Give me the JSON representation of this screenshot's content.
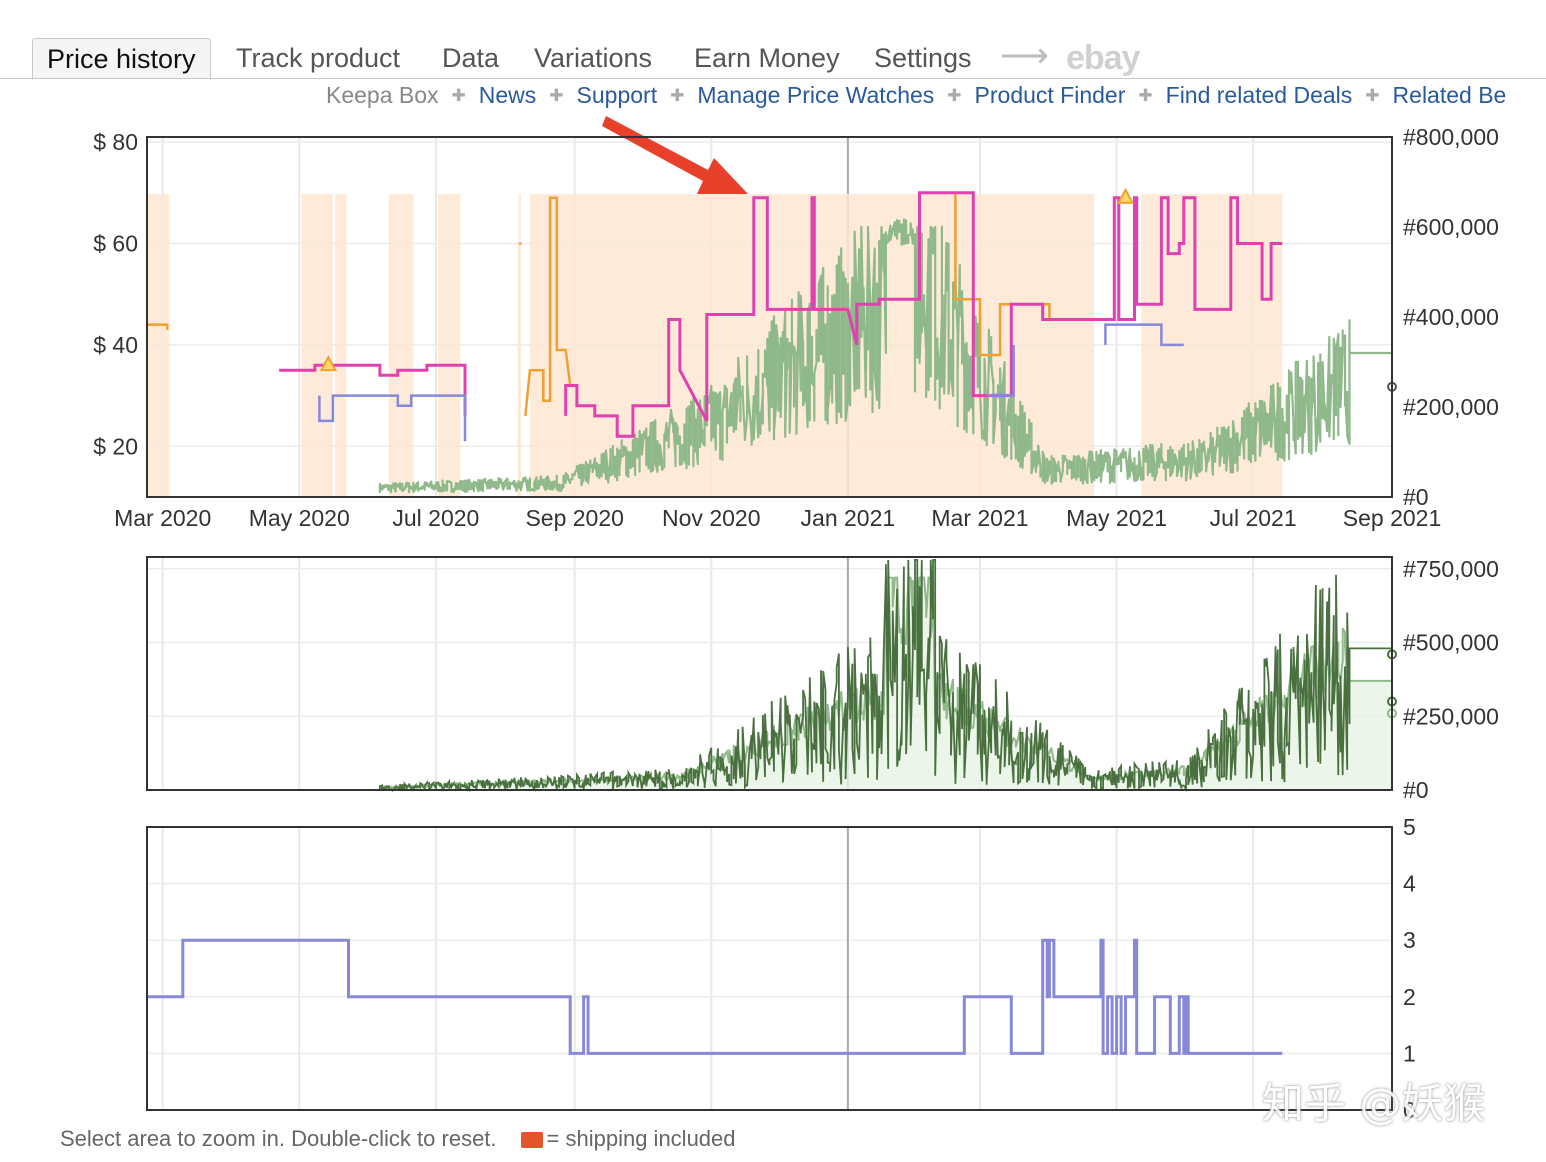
{
  "tabs": [
    {
      "label": "Price history",
      "active": true
    },
    {
      "label": "Track product",
      "active": false
    },
    {
      "label": "Data",
      "active": false
    },
    {
      "label": "Variations",
      "active": false
    },
    {
      "label": "Earn Money",
      "active": false
    },
    {
      "label": "Settings",
      "active": false
    }
  ],
  "tab_arrow": "⟶",
  "tab_ebay": "ebay",
  "sublinks": {
    "keepa_box": "Keepa Box",
    "items": [
      "News",
      "Support",
      "Manage Price Watches",
      "Product Finder",
      "Find related Deals",
      "Related Be"
    ]
  },
  "footer": {
    "hint": "Select area to zoom in. Double-click to reset.",
    "shipping": "= shipping included"
  },
  "watermark": "知乎 @妖猴",
  "colors": {
    "amazon": "#f0a030",
    "new": "#e040b0",
    "used": "#8888d8",
    "rank": "#8fb98a",
    "rank_dark": "#4a7040",
    "fill": "#fde6d2",
    "arrow": "#e8402a"
  },
  "chart_data": [
    {
      "type": "line",
      "panel": "price",
      "x_ticks": [
        "Mar 2020",
        "May 2020",
        "Jul 2020",
        "Sep 2020",
        "Nov 2020",
        "Jan 2021",
        "Mar 2021",
        "May 2021",
        "Jul 2021",
        "Sep 2021"
      ],
      "x_range": [
        "2020-02-23",
        "2021-09-01"
      ],
      "y_left_ticks": [
        "$ 20",
        "$ 40",
        "$ 60",
        "$ 80"
      ],
      "y_left_range": [
        10,
        81
      ],
      "y_right_ticks": [
        "#0",
        "#200,000",
        "#400,000",
        "#600,000",
        "#800,000"
      ],
      "y_right_range": [
        0,
        800000
      ],
      "series": [
        {
          "key": "amazon",
          "color": "#f0a030",
          "points": [
            [
              "2020-02-23",
              44
            ],
            [
              "2020-03-03",
              44
            ],
            [
              "2020-03-03",
              43
            ],
            [
              "2020-08-10",
              26
            ],
            [
              "2020-08-12",
              35
            ],
            [
              "2020-08-18",
              35
            ],
            [
              "2020-08-18",
              29
            ],
            [
              "2020-08-21",
              29
            ],
            [
              "2020-08-21",
              69
            ],
            [
              "2020-08-24",
              69
            ],
            [
              "2020-08-24",
              39
            ],
            [
              "2020-08-28",
              39
            ],
            [
              "2020-08-30",
              32
            ],
            [
              "2021-02-02",
              70
            ],
            [
              "2021-02-18",
              70
            ],
            [
              "2021-02-18",
              49
            ],
            [
              "2021-03-01",
              49
            ],
            [
              "2021-03-01",
              38
            ],
            [
              "2021-03-10",
              38
            ],
            [
              "2021-03-10",
              48
            ],
            [
              "2021-04-01",
              48
            ],
            [
              "2021-04-01",
              45
            ],
            [
              "2021-04-21",
              45
            ]
          ]
        },
        {
          "key": "new",
          "color": "#e040b0",
          "points": [
            [
              "2020-04-22",
              35
            ],
            [
              "2020-05-08",
              35
            ],
            [
              "2020-05-08",
              36
            ],
            [
              "2020-06-06",
              36
            ],
            [
              "2020-06-06",
              34
            ],
            [
              "2020-06-14",
              34
            ],
            [
              "2020-06-14",
              35
            ],
            [
              "2020-06-27",
              35
            ],
            [
              "2020-06-27",
              36
            ],
            [
              "2020-07-14",
              36
            ],
            [
              "2020-07-14",
              26
            ],
            [
              "2020-08-28",
              26
            ],
            [
              "2020-08-28",
              32
            ],
            [
              "2020-09-02",
              32
            ],
            [
              "2020-09-02",
              28
            ],
            [
              "2020-09-10",
              28
            ],
            [
              "2020-09-10",
              26
            ],
            [
              "2020-09-20",
              26
            ],
            [
              "2020-09-20",
              22
            ],
            [
              "2020-09-27",
              22
            ],
            [
              "2020-09-27",
              28
            ],
            [
              "2020-10-13",
              28
            ],
            [
              "2020-10-13",
              45
            ],
            [
              "2020-10-18",
              45
            ],
            [
              "2020-10-18",
              35
            ],
            [
              "2020-10-30",
              25
            ],
            [
              "2020-10-30",
              46
            ],
            [
              "2020-11-20",
              46
            ],
            [
              "2020-11-20",
              69
            ],
            [
              "2020-11-26",
              69
            ],
            [
              "2020-11-26",
              47
            ],
            [
              "2020-12-16",
              47
            ],
            [
              "2020-12-16",
              69
            ],
            [
              "2020-12-17",
              69
            ],
            [
              "2020-12-17",
              47
            ],
            [
              "2021-01-01",
              47
            ],
            [
              "2021-01-05",
              40
            ],
            [
              "2021-01-05",
              48
            ],
            [
              "2021-01-15",
              48
            ],
            [
              "2021-01-15",
              49
            ],
            [
              "2021-02-02",
              49
            ],
            [
              "2021-02-02",
              70
            ],
            [
              "2021-02-26",
              70
            ],
            [
              "2021-02-26",
              30
            ],
            [
              "2021-03-15",
              30
            ],
            [
              "2021-03-15",
              48
            ],
            [
              "2021-03-29",
              48
            ],
            [
              "2021-03-29",
              45
            ],
            [
              "2021-04-30",
              45
            ],
            [
              "2021-04-30",
              69
            ],
            [
              "2021-05-02",
              69
            ],
            [
              "2021-05-02",
              45
            ],
            [
              "2021-05-09",
              45
            ],
            [
              "2021-05-09",
              69
            ],
            [
              "2021-05-10",
              69
            ],
            [
              "2021-05-10",
              48
            ],
            [
              "2021-05-21",
              48
            ],
            [
              "2021-05-21",
              69
            ],
            [
              "2021-05-24",
              69
            ],
            [
              "2021-05-24",
              58
            ],
            [
              "2021-05-29",
              58
            ],
            [
              "2021-05-29",
              60
            ],
            [
              "2021-05-31",
              60
            ],
            [
              "2021-05-31",
              69
            ],
            [
              "2021-06-05",
              69
            ],
            [
              "2021-06-05",
              47
            ],
            [
              "2021-06-21",
              47
            ],
            [
              "2021-06-21",
              69
            ],
            [
              "2021-06-24",
              69
            ],
            [
              "2021-06-24",
              60
            ],
            [
              "2021-07-05",
              60
            ],
            [
              "2021-07-05",
              49
            ],
            [
              "2021-07-09",
              49
            ],
            [
              "2021-07-09",
              60
            ],
            [
              "2021-07-14",
              60
            ]
          ]
        },
        {
          "key": "used",
          "color": "#8888d8",
          "points": [
            [
              "2020-02-23",
              30
            ],
            [
              "2020-05-10",
              30
            ],
            [
              "2020-05-10",
              25
            ],
            [
              "2020-05-16",
              25
            ],
            [
              "2020-05-16",
              30
            ],
            [
              "2020-06-14",
              30
            ],
            [
              "2020-06-14",
              28
            ],
            [
              "2020-06-20",
              28
            ],
            [
              "2020-06-20",
              30
            ],
            [
              "2020-07-14",
              30
            ],
            [
              "2020-07-14",
              21
            ],
            [
              "2020-08-28",
              21
            ],
            [
              "2021-03-04",
              30
            ],
            [
              "2021-03-16",
              30
            ],
            [
              "2021-03-16",
              40
            ],
            [
              "2021-04-26",
              40
            ],
            [
              "2021-04-26",
              44
            ],
            [
              "2021-05-21",
              44
            ],
            [
              "2021-05-21",
              40
            ],
            [
              "2021-05-31",
              40
            ]
          ]
        },
        {
          "key": "sales_rank",
          "color": "#8fb98a",
          "axis": "right",
          "generated": true
        }
      ],
      "annotations": [
        "red arrow pointing at price peak Nov 2020",
        "warning triangles near May 2020 and May 2021"
      ]
    },
    {
      "type": "line",
      "panel": "rank_detail",
      "y_right_ticks": [
        "#0",
        "#250,000",
        "#500,000",
        "#750,000"
      ],
      "y_right_range": [
        0,
        790000
      ],
      "series": [
        {
          "key": "rank_light",
          "color": "#8fb98a"
        },
        {
          "key": "rank_dark",
          "color": "#4a7040"
        }
      ]
    },
    {
      "type": "line",
      "panel": "offer_count",
      "y_right_ticks": [
        "0",
        "1",
        "2",
        "3",
        "4",
        "5"
      ],
      "y_right_range": [
        0,
        5
      ],
      "series": [
        {
          "key": "used_offers",
          "color": "#8888d8",
          "points": [
            [
              "2020-02-23",
              2
            ],
            [
              "2020-03-10",
              2
            ],
            [
              "2020-03-10",
              3
            ],
            [
              "2020-05-23",
              3
            ],
            [
              "2020-05-23",
              2
            ],
            [
              "2020-08-30",
              2
            ],
            [
              "2020-08-30",
              1
            ],
            [
              "2020-09-05",
              1
            ],
            [
              "2020-09-05",
              2
            ],
            [
              "2020-09-07",
              2
            ],
            [
              "2020-09-07",
              1
            ],
            [
              "2021-02-22",
              1
            ],
            [
              "2021-02-22",
              2
            ],
            [
              "2021-03-15",
              2
            ],
            [
              "2021-03-15",
              1
            ],
            [
              "2021-03-29",
              1
            ],
            [
              "2021-03-29",
              3
            ],
            [
              "2021-03-31",
              3
            ],
            [
              "2021-03-31",
              2
            ],
            [
              "2021-04-01",
              2
            ],
            [
              "2021-04-01",
              3
            ],
            [
              "2021-04-03",
              3
            ],
            [
              "2021-04-03",
              2
            ],
            [
              "2021-04-24",
              2
            ],
            [
              "2021-04-24",
              3
            ],
            [
              "2021-04-25",
              3
            ],
            [
              "2021-04-25",
              1
            ],
            [
              "2021-04-27",
              1
            ],
            [
              "2021-04-27",
              2
            ],
            [
              "2021-04-29",
              2
            ],
            [
              "2021-04-29",
              1
            ],
            [
              "2021-05-01",
              1
            ],
            [
              "2021-05-01",
              2
            ],
            [
              "2021-05-03",
              2
            ],
            [
              "2021-05-03",
              1
            ],
            [
              "2021-05-05",
              1
            ],
            [
              "2021-05-05",
              2
            ],
            [
              "2021-05-09",
              2
            ],
            [
              "2021-05-09",
              3
            ],
            [
              "2021-05-10",
              3
            ],
            [
              "2021-05-10",
              1
            ],
            [
              "2021-05-18",
              1
            ],
            [
              "2021-05-18",
              2
            ],
            [
              "2021-05-25",
              2
            ],
            [
              "2021-05-25",
              1
            ],
            [
              "2021-05-29",
              1
            ],
            [
              "2021-05-29",
              2
            ],
            [
              "2021-05-31",
              2
            ],
            [
              "2021-05-31",
              1
            ],
            [
              "2021-06-01",
              1
            ],
            [
              "2021-06-01",
              2
            ],
            [
              "2021-06-02",
              2
            ],
            [
              "2021-06-02",
              1
            ],
            [
              "2021-07-14",
              1
            ]
          ]
        }
      ]
    }
  ]
}
